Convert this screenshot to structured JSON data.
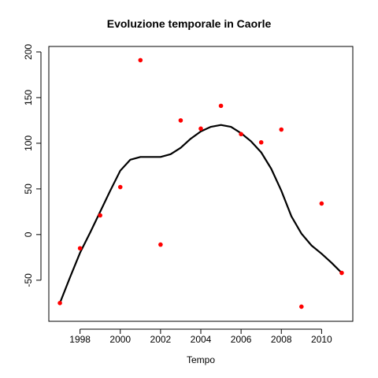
{
  "chart_data": {
    "type": "scatter",
    "title": "Evoluzione temporale in Caorle",
    "xlabel": "Tempo",
    "ylabel": "",
    "xlim": [
      1996.45,
      2011.55
    ],
    "ylim": [
      -95,
      206
    ],
    "xticks": [
      1998,
      2000,
      2002,
      2004,
      2006,
      2008,
      2010
    ],
    "yticks": [
      -50,
      0,
      50,
      100,
      150,
      200
    ],
    "grid": false,
    "legend": "none",
    "point_color": "#ff0000",
    "line_color": "#000000",
    "points": {
      "x": [
        1997,
        1998,
        1999,
        2000,
        2001,
        2002,
        2003,
        2004,
        2005,
        2006,
        2007,
        2008,
        2009,
        2010,
        2011
      ],
      "y": [
        -75,
        -15,
        21,
        52,
        191,
        -11,
        125,
        116,
        141,
        110,
        101,
        115,
        -79,
        34,
        -42
      ]
    },
    "smooth_line": {
      "x": [
        1997,
        1997.5,
        1998,
        1998.5,
        1999,
        1999.5,
        2000,
        2000.5,
        2001,
        2001.5,
        2002,
        2002.5,
        2003,
        2003.5,
        2004,
        2004.5,
        2005,
        2005.5,
        2006,
        2006.5,
        2007,
        2007.5,
        2008,
        2008.5,
        2009,
        2009.5,
        2010,
        2010.5,
        2011
      ],
      "y": [
        -75,
        -47,
        -20,
        2,
        25,
        48,
        70,
        82,
        85,
        85,
        85,
        88,
        95,
        105,
        113,
        118,
        120,
        118,
        111,
        102,
        90,
        72,
        48,
        20,
        1,
        -12,
        -21,
        -31,
        -42
      ]
    }
  }
}
